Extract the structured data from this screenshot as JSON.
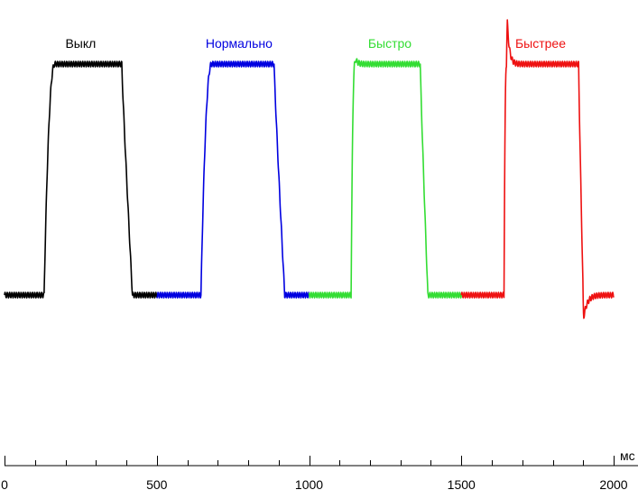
{
  "chart_data": {
    "type": "line",
    "title": "",
    "xlabel": "",
    "ylabel": "",
    "x_unit": "мс",
    "xlim": [
      0,
      2000
    ],
    "x_ticks": [
      0,
      500,
      1000,
      1500,
      2000
    ],
    "x_tick_labels": [
      "0",
      "500",
      "1000",
      "1500",
      "2000"
    ],
    "minor_tick_step": 100,
    "ylim": [
      -0.25,
      1.3
    ],
    "grid": false,
    "legend": "none (series labels placed above each pulse)",
    "series": [
      {
        "name": "Выкл",
        "color": "#000000",
        "x_range": [
          0,
          500
        ],
        "low_level": 0,
        "high_level": 1,
        "rise_start": 130,
        "high_reached": 165,
        "fall_start": 385,
        "low_reached": 420,
        "overshoot_peak": 0,
        "undershoot": 0,
        "label_x": 250
      },
      {
        "name": "Нормально",
        "color": "#0000e0",
        "x_range": [
          500,
          1000
        ],
        "low_level": 0,
        "high_level": 1,
        "rise_start": 645,
        "high_reached": 680,
        "fall_start": 885,
        "low_reached": 920,
        "overshoot_peak": 0,
        "undershoot": 0,
        "label_x": 770
      },
      {
        "name": "Быстро",
        "color": "#33dd33",
        "x_range": [
          1000,
          1500
        ],
        "low_level": 0,
        "high_level": 1,
        "rise_start": 1138,
        "high_reached": 1150,
        "fall_start": 1365,
        "low_reached": 1390,
        "overshoot_peak": 1.03,
        "undershoot": 0,
        "label_x": 1265
      },
      {
        "name": "Быстрее",
        "color": "#ee1111",
        "x_range": [
          1500,
          2000
        ],
        "low_level": 0,
        "high_level": 1,
        "rise_start": 1640,
        "high_reached": 1648,
        "fall_start": 1885,
        "low_reached": 1900,
        "overshoot_peak": 1.28,
        "undershoot": -0.11,
        "label_x": 1760
      }
    ]
  }
}
